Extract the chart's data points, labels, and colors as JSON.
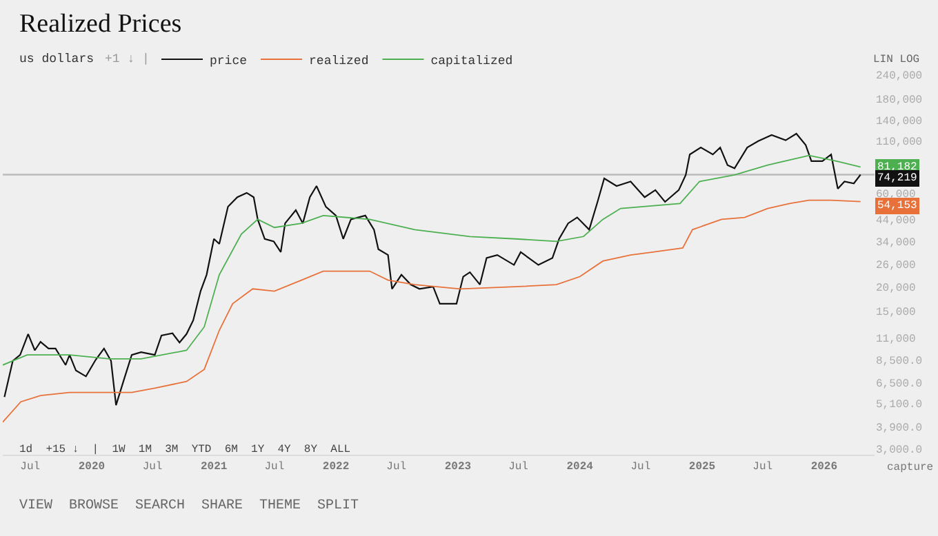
{
  "chart_data": {
    "type": "line",
    "title": "Realized Prices",
    "ylabel": "us dollars",
    "log": true,
    "legend": "top left",
    "marker": "none",
    "line_style": "solid",
    "grid": false,
    "xlim": [
      "2019-04-10",
      "2026-06-01"
    ],
    "xticks": [
      {
        "value": "2019-07-01",
        "label": "Jul"
      },
      {
        "value": "2020-01-01",
        "label": "2020"
      },
      {
        "value": "2020-07-01",
        "label": "Jul"
      },
      {
        "value": "2021-01-01",
        "label": "2021"
      },
      {
        "value": "2021-07-01",
        "label": "Jul"
      },
      {
        "value": "2022-01-01",
        "label": "2022"
      },
      {
        "value": "2022-07-01",
        "label": "Jul"
      },
      {
        "value": "2023-01-01",
        "label": "2023"
      },
      {
        "value": "2023-07-01",
        "label": "Jul"
      },
      {
        "value": "2024-01-01",
        "label": "2024"
      },
      {
        "value": "2024-07-01",
        "label": "Jul"
      },
      {
        "value": "2025-01-01",
        "label": "2025"
      },
      {
        "value": "2025-07-01",
        "label": "Jul"
      },
      {
        "value": "2026-01-01",
        "label": "2026"
      }
    ],
    "ylim": [
      2800,
      240000
    ],
    "yticks": [
      {
        "value": 3000,
        "label": "3,000.0"
      },
      {
        "value": 3900,
        "label": "3,900.0"
      },
      {
        "value": 5100,
        "label": "5,100.0"
      },
      {
        "value": 6500,
        "label": "6,500.0"
      },
      {
        "value": 8500,
        "label": "8,500.0"
      },
      {
        "value": 11000,
        "label": "11,000"
      },
      {
        "value": 15000,
        "label": "15,000"
      },
      {
        "value": 20000,
        "label": "20,000"
      },
      {
        "value": 26000,
        "label": "26,000"
      },
      {
        "value": 34000,
        "label": "34,000"
      },
      {
        "value": 44000,
        "label": "44,000"
      },
      {
        "value": 60000,
        "label": "60,000"
      },
      {
        "value": 110000,
        "label": "110,000"
      },
      {
        "value": 140000,
        "label": "140,000"
      },
      {
        "value": 180000,
        "label": "180,000"
      },
      {
        "value": 240000,
        "label": "240,000"
      }
    ],
    "ref_lines": [
      {
        "axis": "y",
        "value": 74219,
        "color": "#bbbbbb"
      }
    ],
    "annotations": [
      "+1 ↓ |",
      "LIN LOG",
      "1d  +15 ↓  |  1W  1M  3M  YTD  6M  1Y  4Y  8Y  ALL",
      "capture",
      "VIEW  BROWSE  SEARCH  SHARE  THEME  SPLIT"
    ],
    "series": [
      {
        "name": "price",
        "color": "#111111",
        "x": [
          "2019-04-15",
          "2019-05-10",
          "2019-06-01",
          "2019-06-25",
          "2019-07-15",
          "2019-08-01",
          "2019-08-25",
          "2019-09-15",
          "2019-10-15",
          "2019-10-27",
          "2019-11-15",
          "2019-12-15",
          "2020-01-13",
          "2020-02-07",
          "2020-02-28",
          "2020-03-14",
          "2020-04-05",
          "2020-04-30",
          "2020-05-28",
          "2020-07-08",
          "2020-07-28",
          "2020-08-30",
          "2020-09-20",
          "2020-10-11",
          "2020-10-31",
          "2020-11-22",
          "2020-12-10",
          "2021-01-01",
          "2021-01-17",
          "2021-02-12",
          "2021-03-12",
          "2021-04-09",
          "2021-04-30",
          "2021-05-12",
          "2021-06-02",
          "2021-06-29",
          "2021-07-20",
          "2021-08-02",
          "2021-09-03",
          "2021-09-24",
          "2021-10-15",
          "2021-11-04",
          "2021-12-02",
          "2022-01-01",
          "2022-01-23",
          "2022-02-15",
          "2022-03-30",
          "2022-04-25",
          "2022-05-08",
          "2022-06-06",
          "2022-06-18",
          "2022-07-16",
          "2022-08-13",
          "2022-09-08",
          "2022-10-19",
          "2022-11-08",
          "2022-12-28",
          "2023-01-17",
          "2023-02-06",
          "2023-03-08",
          "2023-03-28",
          "2023-04-29",
          "2023-06-18",
          "2023-07-08",
          "2023-08-30",
          "2023-10-11",
          "2023-10-31",
          "2023-11-27",
          "2023-12-24",
          "2024-01-29",
          "2024-02-23",
          "2024-03-14",
          "2024-04-20",
          "2024-06-01",
          "2024-07-13",
          "2024-08-14",
          "2024-09-12",
          "2024-10-23",
          "2024-11-13",
          "2024-11-25",
          "2024-12-28",
          "2025-02-02",
          "2025-02-24",
          "2025-03-18",
          "2025-04-08",
          "2025-05-16",
          "2025-06-18",
          "2025-07-28",
          "2025-09-08",
          "2025-10-10",
          "2025-11-07",
          "2025-11-24",
          "2025-12-27",
          "2026-01-22",
          "2026-02-11",
          "2026-03-03",
          "2026-03-31",
          "2026-04-20"
        ],
        "values": [
          5500,
          8400,
          9000,
          11500,
          9500,
          10500,
          9700,
          9700,
          8000,
          9000,
          7500,
          7000,
          8500,
          9700,
          8400,
          5000,
          6600,
          9000,
          9300,
          9000,
          11300,
          11600,
          10400,
          11500,
          13500,
          19000,
          23000,
          35000,
          33000,
          51000,
          57000,
          60000,
          57000,
          44000,
          35000,
          34000,
          30000,
          42000,
          49000,
          42000,
          57000,
          65000,
          51000,
          46000,
          35000,
          44000,
          46000,
          39000,
          31000,
          29000,
          19500,
          23000,
          20500,
          19500,
          20000,
          16400,
          16400,
          22500,
          23700,
          20500,
          28000,
          29000,
          25800,
          30000,
          25800,
          28000,
          35000,
          42000,
          45000,
          39000,
          54000,
          71000,
          65000,
          68500,
          57000,
          62000,
          54000,
          62000,
          74000,
          94000,
          102000,
          94000,
          102000,
          83000,
          80000,
          102000,
          110000,
          118000,
          111000,
          120000,
          105000,
          87000,
          87000,
          94000,
          63000,
          68500,
          67000,
          74219
        ],
        "value_labels": [
          null,
          null,
          null,
          null,
          null,
          null,
          null,
          null,
          null,
          null,
          null,
          null,
          null,
          null,
          null,
          null,
          null,
          null,
          null,
          null,
          null,
          null,
          null,
          null,
          null,
          null,
          null,
          null,
          null,
          null,
          null,
          null,
          null,
          null,
          null,
          null,
          null,
          null,
          null,
          null,
          null,
          null,
          null,
          null,
          null,
          null,
          null,
          null,
          null,
          null,
          null,
          null,
          null,
          null,
          null,
          null,
          null,
          null,
          null,
          null,
          null,
          null,
          null,
          null,
          null,
          null,
          null,
          null,
          null,
          null,
          null,
          null,
          null,
          null,
          null,
          null,
          null,
          null,
          null,
          null,
          null,
          null,
          null,
          null,
          null,
          null,
          null,
          null,
          null,
          null,
          null,
          null,
          null,
          null,
          null,
          null,
          null,
          "74,219"
        ]
      },
      {
        "name": "realized",
        "color": "#e8713a",
        "x": [
          "2019-04-10",
          "2019-06-03",
          "2019-08-01",
          "2019-10-27",
          "2020-02-23",
          "2020-04-30",
          "2020-07-08",
          "2020-10-11",
          "2020-12-03",
          "2021-01-17",
          "2021-02-26",
          "2021-04-27",
          "2021-07-01",
          "2021-09-20",
          "2021-11-24",
          "2022-04-12",
          "2022-06-06",
          "2022-08-25",
          "2023-01-08",
          "2023-06-22",
          "2023-10-23",
          "2024-01-01",
          "2024-03-10",
          "2024-06-01",
          "2024-08-07",
          "2024-11-04",
          "2024-12-03",
          "2025-02-28",
          "2025-05-08",
          "2025-07-16",
          "2025-09-20",
          "2025-11-17",
          "2026-01-22",
          "2026-04-20"
        ],
        "values": [
          4100,
          5200,
          5600,
          5800,
          5800,
          5800,
          6100,
          6600,
          7600,
          12000,
          16400,
          19500,
          19000,
          21600,
          24000,
          24000,
          21600,
          20500,
          19500,
          20000,
          20500,
          22500,
          27000,
          29000,
          30000,
          31500,
          39000,
          44000,
          45000,
          50000,
          53000,
          55000,
          55000,
          54153
        ],
        "value_labels": [
          null,
          null,
          null,
          null,
          null,
          null,
          null,
          null,
          null,
          null,
          null,
          null,
          null,
          null,
          null,
          null,
          null,
          null,
          null,
          null,
          null,
          null,
          null,
          null,
          null,
          null,
          null,
          null,
          null,
          null,
          null,
          null,
          null,
          "54,153"
        ]
      },
      {
        "name": "capitalized",
        "color": "#4caf50",
        "x": [
          "2019-04-10",
          "2019-06-22",
          "2019-08-25",
          "2019-10-27",
          "2020-02-23",
          "2020-05-28",
          "2020-10-11",
          "2020-12-03",
          "2021-01-17",
          "2021-03-24",
          "2021-05-12",
          "2021-07-01",
          "2021-09-20",
          "2021-11-24",
          "2022-04-12",
          "2022-08-25",
          "2023-02-06",
          "2023-06-22",
          "2023-10-23",
          "2024-01-12",
          "2024-03-10",
          "2024-05-02",
          "2024-10-27",
          "2024-12-24",
          "2025-04-08",
          "2025-07-16",
          "2025-11-17",
          "2026-02-07",
          "2026-04-20"
        ],
        "values": [
          8000,
          9000,
          9000,
          9000,
          8600,
          8600,
          9500,
          12500,
          23000,
          37000,
          44000,
          40000,
          42000,
          46000,
          44000,
          39000,
          36000,
          35000,
          34000,
          36000,
          44000,
          50000,
          53000,
          68500,
          74000,
          83000,
          93000,
          87000,
          81182
        ],
        "value_labels": [
          null,
          null,
          null,
          null,
          null,
          null,
          null,
          null,
          null,
          null,
          null,
          null,
          null,
          null,
          null,
          null,
          null,
          null,
          null,
          null,
          null,
          null,
          null,
          null,
          null,
          null,
          null,
          null,
          "81,182"
        ]
      }
    ]
  }
}
